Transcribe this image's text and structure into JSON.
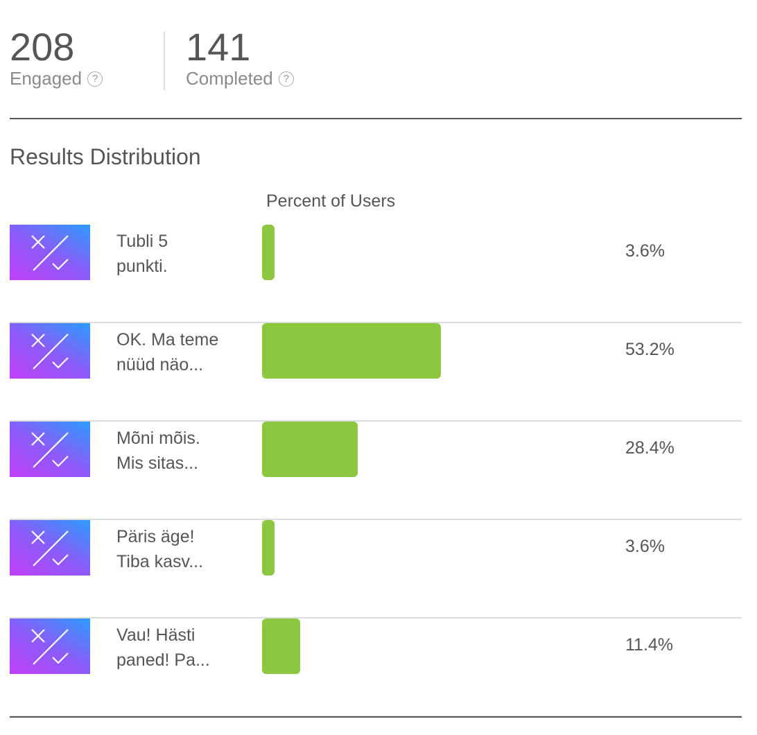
{
  "stats": [
    {
      "value": "208",
      "label": "Engaged",
      "icon": "help-icon"
    },
    {
      "value": "141",
      "label": "Completed",
      "icon": "help-icon"
    }
  ],
  "section_title": "Results Distribution",
  "chart_data": {
    "type": "bar",
    "orientation": "horizontal",
    "title": "Results Distribution",
    "xlabel": "Percent of Users",
    "categories": [
      "Tubli 5 punkti.",
      "OK. Ma teme nüüd näo...",
      "Mõni mõis. Mis sitas...",
      "Päris äge! Tiba kasv...",
      "Vau! Hästi paned! Pa..."
    ],
    "values": [
      3.6,
      53.2,
      28.4,
      3.6,
      11.4
    ],
    "value_labels": [
      "3.6%",
      "53.2%",
      "28.4%",
      "3.6%",
      "11.4%"
    ],
    "bar_color": "#8dc63f",
    "lines": [
      [
        "Tubli 5",
        "punkti."
      ],
      [
        "OK. Ma teme",
        "nüüd näo..."
      ],
      [
        "Mõni mõis.",
        "Mis sitas..."
      ],
      [
        "Päris äge!",
        "Tiba kasv..."
      ],
      [
        "Vau! Hästi",
        "paned! Pa..."
      ]
    ]
  }
}
